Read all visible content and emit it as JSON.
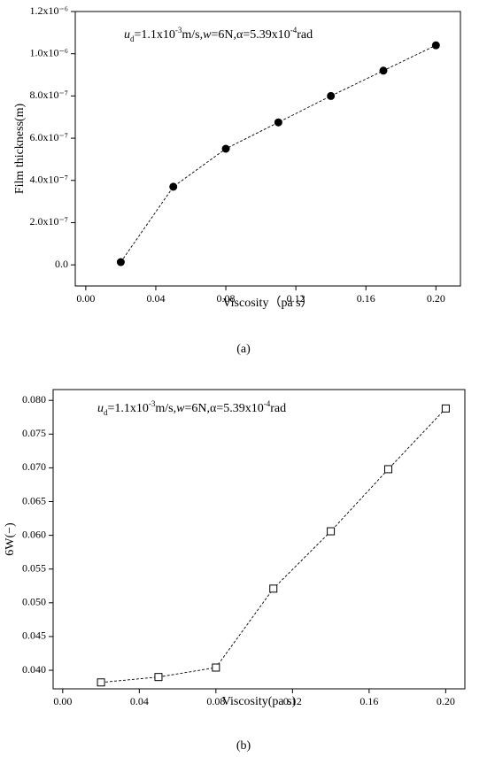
{
  "chart_data": [
    {
      "type": "line",
      "caption": "(a)",
      "annotation_parts": [
        {
          "text": "u",
          "style": "italic"
        },
        {
          "text": "d",
          "style": "sub"
        },
        {
          "text": "=1.1x10",
          "style": "normal"
        },
        {
          "text": "-3",
          "style": "sup"
        },
        {
          "text": "m/s,",
          "style": "normal"
        },
        {
          "text": "w",
          "style": "italic"
        },
        {
          "text": "=6N,α=5.39x10",
          "style": "normal"
        },
        {
          "text": "-4",
          "style": "sup"
        },
        {
          "text": "rad",
          "style": "normal"
        }
      ],
      "x_label": "Viscosity（pa s）",
      "y_label": "Film thickness(m)",
      "x": [
        0.02,
        0.05,
        0.08,
        0.11,
        0.14,
        0.17,
        0.2
      ],
      "series": [
        {
          "color": "#000000",
          "marker": "circle",
          "filled": true,
          "values": [
            1.3e-08,
            3.7e-07,
            5.5e-07,
            6.75e-07,
            8e-07,
            9.2e-07,
            1.04e-06
          ]
        }
      ],
      "xlim": [
        -0.006,
        0.214
      ],
      "ylim": [
        -1e-07,
        1.2e-06
      ],
      "xticks": [
        {
          "value": 0,
          "label": "0.00"
        },
        0.04,
        0.08,
        0.12,
        0.16,
        {
          "value": 0.2,
          "label": "0.20"
        }
      ],
      "yticks": [
        {
          "value": 0,
          "label": "0.0"
        },
        {
          "value": 2e-07,
          "label": "2.0x10⁻⁷"
        },
        {
          "value": 4e-07,
          "label": "4.0x10⁻⁷"
        },
        {
          "value": 6e-07,
          "label": "6.0x10⁻⁷"
        },
        {
          "value": 8e-07,
          "label": "8.0x10⁻⁷"
        },
        {
          "value": 1e-06,
          "label": "1.0x10⁻⁶"
        },
        {
          "value": 1.2e-06,
          "label": "1.2x10⁻⁶"
        }
      ]
    },
    {
      "type": "line",
      "caption": "(b)",
      "annotation_parts": [
        {
          "text": "u",
          "style": "italic"
        },
        {
          "text": "d",
          "style": "sub"
        },
        {
          "text": "=1.1x10",
          "style": "normal"
        },
        {
          "text": "-3",
          "style": "sup"
        },
        {
          "text": "m/s,",
          "style": "normal"
        },
        {
          "text": "w",
          "style": "italic"
        },
        {
          "text": "=6N,α=5.39x10",
          "style": "normal"
        },
        {
          "text": "-4",
          "style": "sup"
        },
        {
          "text": "rad",
          "style": "normal"
        }
      ],
      "x_label": "Viscosity(pa s)",
      "y_label": "6W(−)",
      "x": [
        0.02,
        0.05,
        0.08,
        0.11,
        0.14,
        0.17,
        0.2
      ],
      "series": [
        {
          "color": "#000000",
          "marker": "square",
          "filled": false,
          "values": [
            0.0382,
            0.039,
            0.0404,
            0.0521,
            0.0606,
            0.0698,
            0.0788
          ]
        }
      ],
      "xlim": [
        -0.005,
        0.21
      ],
      "ylim": [
        0.03725,
        0.0816
      ],
      "xticks": [
        {
          "value": 0,
          "label": "0.00"
        },
        0.04,
        0.08,
        0.12,
        0.16,
        {
          "value": 0.2,
          "label": "0.20"
        }
      ],
      "yticks": [
        {
          "value": 0.04,
          "label": "0.040"
        },
        0.045,
        {
          "value": 0.05,
          "label": "0.050"
        },
        0.055,
        {
          "value": 0.06,
          "label": "0.060"
        },
        0.065,
        {
          "value": 0.07,
          "label": "0.070"
        },
        0.075,
        {
          "value": 0.08,
          "label": "0.080"
        }
      ]
    }
  ]
}
